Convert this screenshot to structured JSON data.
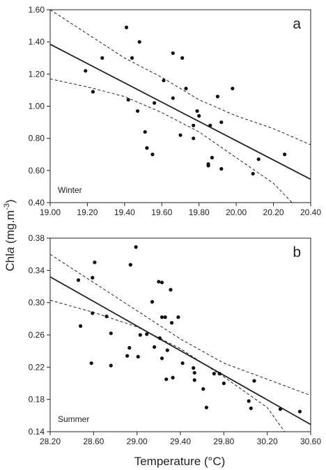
{
  "chart_data": [
    {
      "type": "scatter",
      "panel": "a",
      "season": "Winter",
      "xlim": [
        19.0,
        20.4
      ],
      "ylim": [
        0.4,
        1.6
      ],
      "xticks": [
        "19.00",
        "19.20",
        "19.40",
        "19.60",
        "19.80",
        "20.00",
        "20.20",
        "20.40"
      ],
      "yticks": [
        "0.40",
        "0.60",
        "0.80",
        "1.00",
        "1.20",
        "1.40",
        "1.60"
      ],
      "points": [
        [
          19.19,
          1.22
        ],
        [
          19.23,
          1.09
        ],
        [
          19.28,
          1.3
        ],
        [
          19.41,
          1.49
        ],
        [
          19.44,
          1.3
        ],
        [
          19.48,
          1.4
        ],
        [
          19.42,
          1.04
        ],
        [
          19.47,
          0.97
        ],
        [
          19.51,
          0.84
        ],
        [
          19.52,
          0.74
        ],
        [
          19.55,
          0.7
        ],
        [
          19.56,
          1.02
        ],
        [
          19.61,
          1.16
        ],
        [
          19.66,
          1.33
        ],
        [
          19.66,
          1.05
        ],
        [
          19.71,
          1.3
        ],
        [
          19.73,
          1.11
        ],
        [
          19.7,
          0.82
        ],
        [
          19.77,
          0.88
        ],
        [
          19.77,
          0.8
        ],
        [
          19.79,
          0.97
        ],
        [
          19.8,
          0.94
        ],
        [
          19.86,
          0.88
        ],
        [
          19.85,
          0.64
        ],
        [
          19.85,
          0.63
        ],
        [
          19.87,
          0.68
        ],
        [
          19.9,
          1.06
        ],
        [
          19.92,
          0.9
        ],
        [
          19.92,
          0.61
        ],
        [
          19.98,
          1.11
        ],
        [
          20.09,
          0.58
        ],
        [
          20.12,
          0.67
        ],
        [
          20.26,
          0.7
        ]
      ],
      "fit": [
        [
          19.0,
          1.385
        ],
        [
          20.4,
          0.545
        ]
      ],
      "ci_upper": [
        [
          19.0,
          1.6
        ],
        [
          19.2,
          1.45
        ],
        [
          19.4,
          1.3
        ],
        [
          19.6,
          1.18
        ],
        [
          19.8,
          1.04
        ],
        [
          20.0,
          0.94
        ],
        [
          20.2,
          0.86
        ],
        [
          20.4,
          0.76
        ]
      ],
      "ci_lower": [
        [
          19.0,
          1.17
        ],
        [
          19.2,
          1.12
        ],
        [
          19.4,
          1.06
        ],
        [
          19.6,
          0.96
        ],
        [
          19.8,
          0.84
        ],
        [
          20.0,
          0.68
        ],
        [
          20.2,
          0.52
        ],
        [
          20.3,
          0.4
        ]
      ]
    },
    {
      "type": "scatter",
      "panel": "b",
      "season": "Summer",
      "xlim": [
        28.2,
        30.6
      ],
      "ylim": [
        0.14,
        0.38
      ],
      "xticks": [
        "28.20",
        "28.60",
        "29.00",
        "29.40",
        "29.80",
        "30.20",
        "30.60"
      ],
      "yticks": [
        "0.14",
        "0.18",
        "0.22",
        "0.26",
        "0.30",
        "0.34",
        "0.38"
      ],
      "points": [
        [
          28.46,
          0.328
        ],
        [
          28.48,
          0.271
        ],
        [
          28.59,
          0.331
        ],
        [
          28.61,
          0.35
        ],
        [
          28.59,
          0.287
        ],
        [
          28.58,
          0.225
        ],
        [
          28.72,
          0.283
        ],
        [
          28.76,
          0.262
        ],
        [
          28.76,
          0.222
        ],
        [
          28.91,
          0.234
        ],
        [
          28.93,
          0.244
        ],
        [
          28.94,
          0.347
        ],
        [
          28.99,
          0.369
        ],
        [
          29.01,
          0.233
        ],
        [
          29.03,
          0.26
        ],
        [
          29.09,
          0.261
        ],
        [
          29.14,
          0.301
        ],
        [
          29.16,
          0.245
        ],
        [
          29.2,
          0.326
        ],
        [
          29.23,
          0.325
        ],
        [
          29.23,
          0.282
        ],
        [
          29.21,
          0.256
        ],
        [
          29.23,
          0.231
        ],
        [
          29.26,
          0.282
        ],
        [
          29.28,
          0.241
        ],
        [
          29.27,
          0.205
        ],
        [
          29.31,
          0.316
        ],
        [
          29.32,
          0.275
        ],
        [
          29.33,
          0.207
        ],
        [
          29.38,
          0.282
        ],
        [
          29.42,
          0.225
        ],
        [
          29.52,
          0.219
        ],
        [
          29.53,
          0.213
        ],
        [
          29.53,
          0.204
        ],
        [
          29.61,
          0.193
        ],
        [
          29.64,
          0.17
        ],
        [
          29.71,
          0.212
        ],
        [
          29.76,
          0.212
        ],
        [
          29.8,
          0.2
        ],
        [
          30.03,
          0.178
        ],
        [
          30.05,
          0.169
        ],
        [
          30.08,
          0.203
        ],
        [
          30.32,
          0.168
        ],
        [
          30.5,
          0.165
        ]
      ],
      "fit": [
        [
          28.2,
          0.332
        ],
        [
          30.6,
          0.149
        ]
      ],
      "ci_upper": [
        [
          28.2,
          0.36
        ],
        [
          28.6,
          0.325
        ],
        [
          29.0,
          0.29
        ],
        [
          29.4,
          0.255
        ],
        [
          29.8,
          0.225
        ],
        [
          30.2,
          0.205
        ],
        [
          30.6,
          0.185
        ]
      ],
      "ci_lower": [
        [
          28.2,
          0.303
        ],
        [
          28.6,
          0.288
        ],
        [
          29.0,
          0.27
        ],
        [
          29.4,
          0.243
        ],
        [
          29.8,
          0.208
        ],
        [
          30.2,
          0.17
        ],
        [
          30.36,
          0.14
        ]
      ]
    }
  ],
  "labels": {
    "ylabel_prefix": "Chl",
    "ylabel_italic": "a",
    "ylabel_unit": " (mg.m",
    "ylabel_exp": "-3",
    "ylabel_close": ")",
    "xlabel": "Temperature (°C)"
  }
}
